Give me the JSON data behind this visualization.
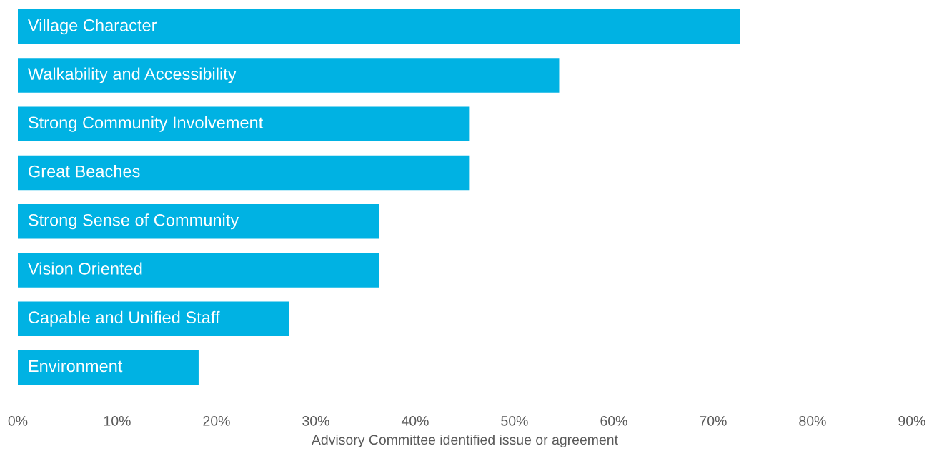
{
  "chart_data": {
    "type": "bar",
    "orientation": "horizontal",
    "xlabel": "Advisory Committee identified issue or agreement",
    "categories": [
      "Village Character",
      "Walkability and Accessibility",
      "Strong Community Involvement",
      "Great Beaches",
      "Strong Sense of Community",
      "Vision Oriented",
      "Capable and Unified Staff",
      "Environment"
    ],
    "values": [
      72.7,
      54.5,
      45.5,
      45.5,
      36.4,
      36.4,
      27.3,
      18.2
    ],
    "color": "#00b2e3",
    "xlim": [
      0,
      90
    ],
    "xticks": [
      {
        "value": 0,
        "label": "0%"
      },
      {
        "value": 10,
        "label": "10%"
      },
      {
        "value": 20,
        "label": "20%"
      },
      {
        "value": 30,
        "label": "30%"
      },
      {
        "value": 40,
        "label": "40%"
      },
      {
        "value": 50,
        "label": "50%"
      },
      {
        "value": 60,
        "label": "60%"
      },
      {
        "value": 70,
        "label": "70%"
      },
      {
        "value": 80,
        "label": "80%"
      },
      {
        "value": 90,
        "label": "90%"
      }
    ],
    "tick_labels": "x",
    "grid": false,
    "legend": false
  }
}
